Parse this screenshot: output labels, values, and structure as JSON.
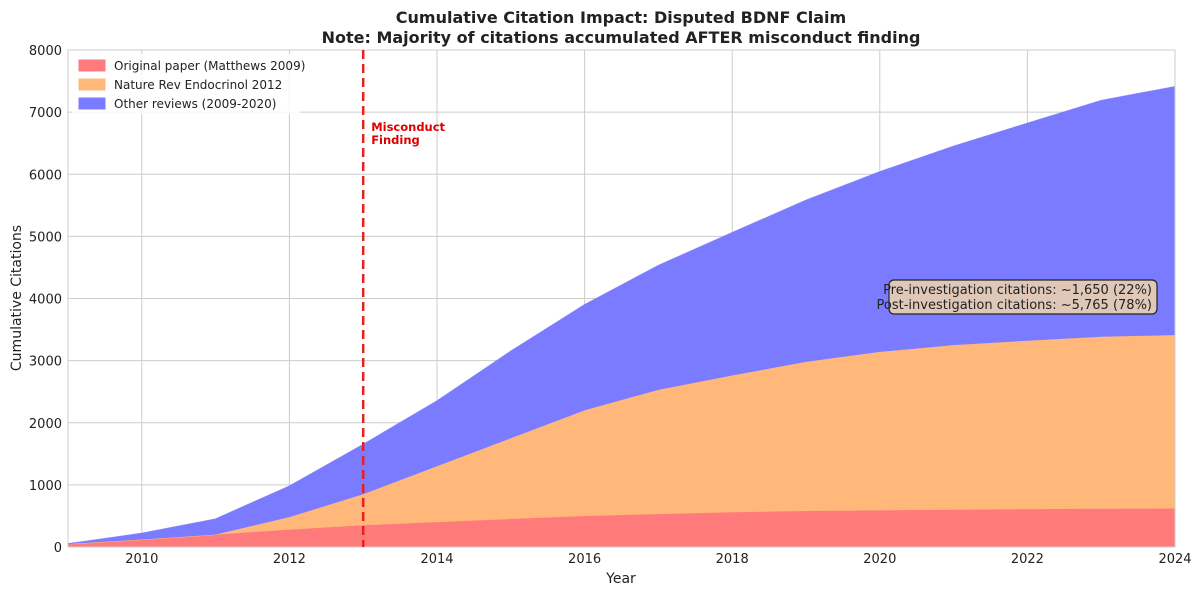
{
  "chart_data": {
    "type": "area",
    "stacked": true,
    "title": "Cumulative Citation Impact: Disputed BDNF Claim",
    "subtitle": "Note: Majority of citations accumulated AFTER misconduct finding",
    "xlabel": "Year",
    "ylabel": "Cumulative Citations",
    "xlim": [
      2009,
      2024
    ],
    "ylim": [
      0,
      8000
    ],
    "xticks": [
      2010,
      2012,
      2014,
      2016,
      2018,
      2020,
      2022,
      2024
    ],
    "yticks": [
      0,
      1000,
      2000,
      3000,
      4000,
      5000,
      6000,
      7000,
      8000
    ],
    "grid": true,
    "legend_position": "top-left",
    "x": [
      2009,
      2010,
      2011,
      2012,
      2013,
      2014,
      2015,
      2016,
      2017,
      2018,
      2019,
      2020,
      2021,
      2022,
      2023,
      2024
    ],
    "series": [
      {
        "name": "Original paper (Matthews 2009)",
        "color": "#ff7b7b",
        "values": [
          50,
          120,
          200,
          280,
          350,
          400,
          450,
          500,
          530,
          560,
          580,
          590,
          600,
          610,
          615,
          620
        ]
      },
      {
        "name": "Nature Rev Endocrinol 2012",
        "color": "#ffb87a",
        "values": [
          0,
          0,
          0,
          200,
          500,
          900,
          1300,
          1700,
          2000,
          2200,
          2400,
          2550,
          2650,
          2710,
          2770,
          2790
        ]
      },
      {
        "name": "Other reviews (2009-2020)",
        "color": "#7b7bff",
        "values": [
          0,
          100,
          250,
          500,
          800,
          1050,
          1400,
          1700,
          2000,
          2300,
          2600,
          2900,
          3200,
          3500,
          3800,
          4000
        ]
      }
    ],
    "vline": {
      "x": 2013,
      "color": "#e82020",
      "label": "Misconduct\nFinding"
    },
    "annotation": {
      "lines": [
        "Pre-investigation citations: ~1,650 (22%)",
        "Post-investigation citations: ~5,765 (78%)"
      ]
    }
  }
}
